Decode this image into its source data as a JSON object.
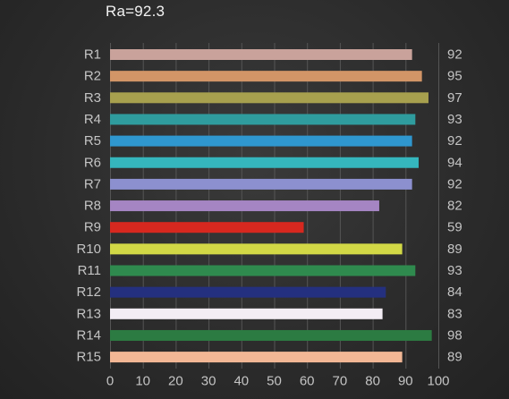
{
  "chart_data": {
    "type": "bar",
    "orientation": "horizontal",
    "title": "Ra=92.3",
    "categories": [
      "R1",
      "R2",
      "R3",
      "R4",
      "R5",
      "R6",
      "R7",
      "R8",
      "R9",
      "R10",
      "R11",
      "R12",
      "R13",
      "R14",
      "R15"
    ],
    "values": [
      92,
      95,
      97,
      93,
      92,
      94,
      92,
      82,
      59,
      89,
      93,
      84,
      83,
      98,
      89
    ],
    "value_labels": [
      "92",
      "95",
      "97",
      "93",
      "92",
      "94",
      "92",
      "82",
      "59",
      "89",
      "93",
      "84",
      "83",
      "98",
      "89"
    ],
    "colors": [
      "#c9a29b",
      "#d29567",
      "#a7a04e",
      "#2f9c9e",
      "#2f97cf",
      "#35b6bd",
      "#8c90cf",
      "#a585c3",
      "#d7281f",
      "#d2d846",
      "#2f8a4e",
      "#24307f",
      "#f3edf4",
      "#2c7b42",
      "#f2b795"
    ],
    "xlim": [
      0,
      100
    ],
    "x_ticks": [
      "0",
      "10",
      "20",
      "30",
      "40",
      "50",
      "60",
      "70",
      "80",
      "90",
      "100"
    ],
    "grid": true
  }
}
